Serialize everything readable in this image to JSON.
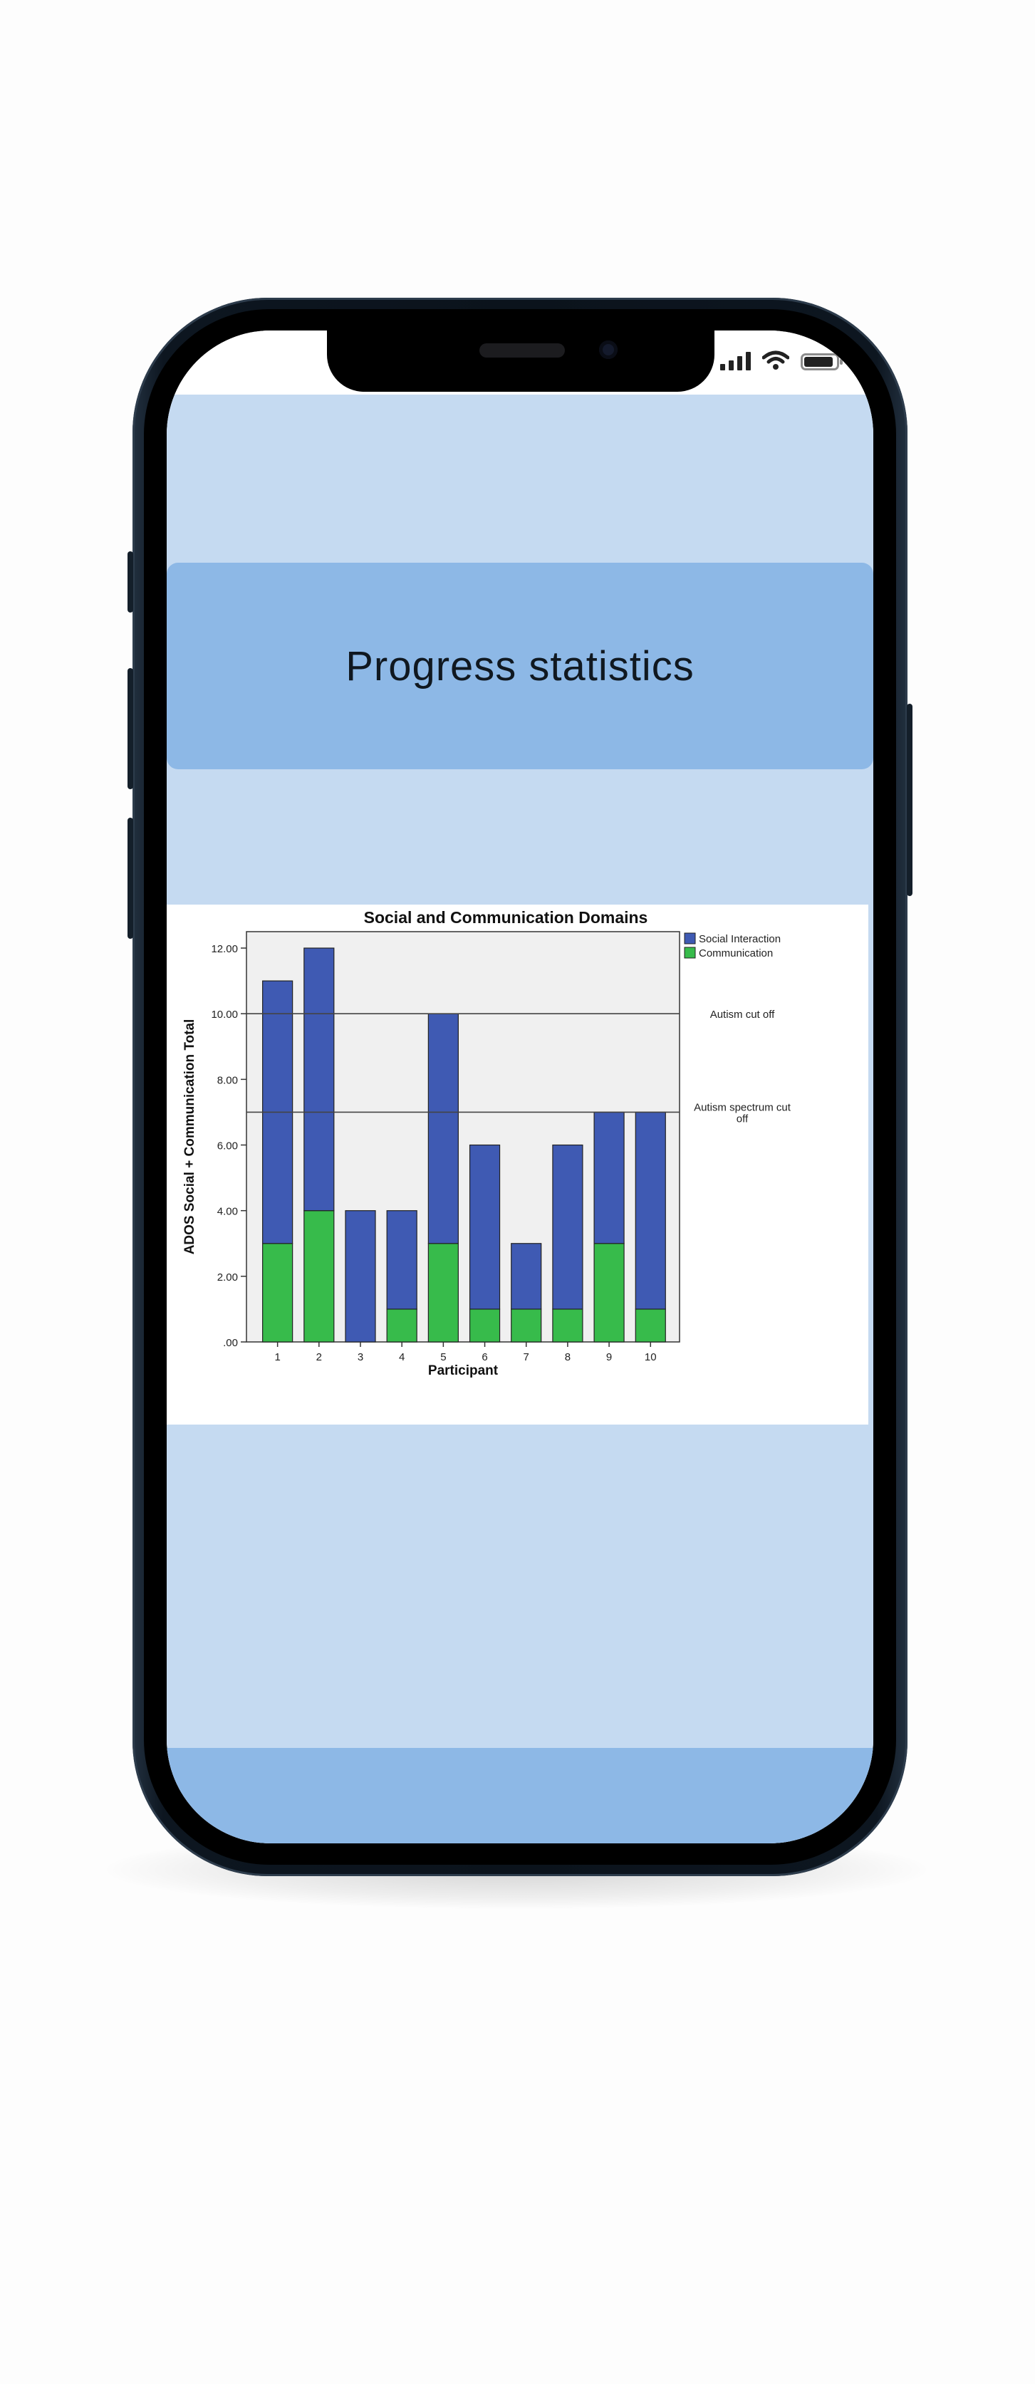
{
  "screen": {
    "title": "Progress statistics"
  },
  "colors": {
    "screen_bg": "#c5daf1",
    "header_bg": "#8db8e6",
    "social_interaction": "#3f5ab3",
    "communication": "#37bb4b",
    "plot_bg": "#f0f0f0"
  },
  "status_bar": {
    "icons": [
      "signal-icon",
      "wifi-icon",
      "battery-icon"
    ]
  },
  "chart_data": {
    "type": "bar",
    "stacked": true,
    "title": "Social and Communication Domains",
    "xlabel": "Participant",
    "ylabel": "ADOS Social + Communication Total",
    "categories": [
      "1",
      "2",
      "3",
      "4",
      "5",
      "6",
      "7",
      "8",
      "9",
      "10"
    ],
    "series": [
      {
        "name": "Communication",
        "values": [
          3,
          4,
          0,
          1,
          3,
          1,
          1,
          1,
          3,
          1
        ]
      },
      {
        "name": "Social Interaction",
        "values": [
          8,
          8,
          4,
          3,
          7,
          5,
          2,
          5,
          4,
          6
        ]
      }
    ],
    "ylim": [
      0,
      12.5
    ],
    "yticks": [
      0,
      2,
      4,
      6,
      8,
      10,
      12
    ],
    "ytick_labels": [
      ".00",
      "2.00",
      "4.00",
      "6.00",
      "8.00",
      "10.00",
      "12.00"
    ],
    "reference_lines": [
      {
        "y": 10,
        "label": "Autism cut off"
      },
      {
        "y": 7,
        "label": "Autism spectrum cut off"
      }
    ],
    "legend_position": "top-right",
    "grid": false
  }
}
